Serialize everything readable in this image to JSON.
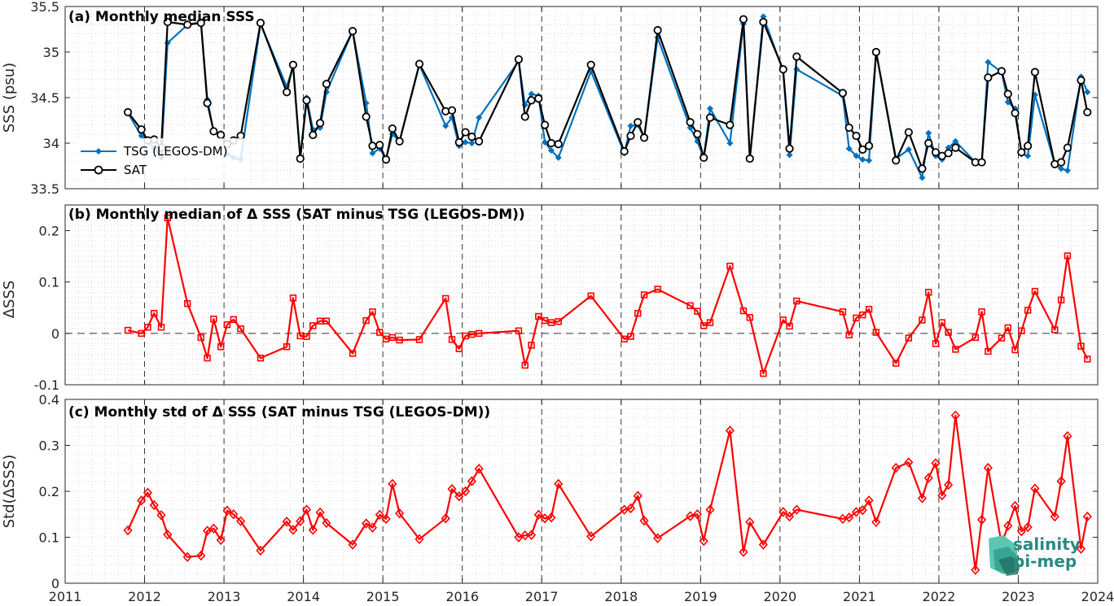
{
  "chart_data": [
    {
      "type": "line",
      "title": "(a) Monthly median SSS",
      "ylabel": "SSS (psu)",
      "ylim": [
        33.5,
        35.5
      ],
      "yticks": [
        "33.5",
        "34",
        "34.5",
        "35",
        "35.5"
      ],
      "xlim": [
        2011,
        2024
      ],
      "grid": "dotted minor grid with dashed year lines",
      "legend_position": "lower-left",
      "series": [
        {
          "name": "TSG (LEGOS-DM)",
          "color": "#0072BD",
          "marker": "filled-diamond",
          "x": [
            2011.79,
            2011.96,
            2012.04,
            2012.12,
            2012.21,
            2012.29,
            2012.54,
            2012.71,
            2012.79,
            2012.87,
            2012.96,
            2013.04,
            2013.12,
            2013.21,
            2013.46,
            2013.79,
            2013.87,
            2013.96,
            2014.04,
            2014.12,
            2014.21,
            2014.29,
            2014.62,
            2014.79,
            2014.87,
            2014.96,
            2015.04,
            2015.12,
            2015.21,
            2015.46,
            2015.79,
            2015.87,
            2015.96,
            2016.04,
            2016.12,
            2016.21,
            2016.71,
            2016.79,
            2016.87,
            2016.96,
            2017.04,
            2017.12,
            2017.21,
            2017.62,
            2018.04,
            2018.12,
            2018.21,
            2018.29,
            2018.46,
            2018.87,
            2018.96,
            2019.04,
            2019.12,
            2019.37,
            2019.54,
            2019.62,
            2019.79,
            2020.04,
            2020.12,
            2020.21,
            2020.79,
            2020.87,
            2020.96,
            2021.04,
            2021.12,
            2021.21,
            2021.46,
            2021.62,
            2021.79,
            2021.87,
            2021.96,
            2022.04,
            2022.12,
            2022.21,
            2022.46,
            2022.54,
            2022.62,
            2022.79,
            2022.87,
            2022.96,
            2023.04,
            2023.12,
            2023.21,
            2023.46,
            2023.54,
            2023.62,
            2023.79,
            2023.87
          ],
          "y": [
            34.33,
            34.08,
            34.02,
            33.95,
            33.84,
            35.1,
            35.3,
            35.33,
            34.48,
            34.12,
            34.11,
            33.88,
            33.84,
            33.82,
            35.31,
            34.62,
            34.84,
            33.84,
            34.5,
            34.15,
            34.17,
            34.56,
            35.23,
            34.44,
            33.89,
            33.94,
            33.83,
            34.1,
            34.02,
            34.86,
            34.19,
            34.28,
            33.97,
            34.01,
            34.0,
            34.28,
            34.9,
            34.42,
            34.54,
            34.52,
            34.01,
            33.92,
            33.84,
            34.79,
            33.89,
            34.19,
            34.2,
            34.06,
            35.16,
            34.17,
            34.02,
            33.84,
            34.38,
            34.0,
            35.31,
            33.82,
            35.39,
            34.79,
            33.87,
            34.81,
            34.52,
            33.94,
            33.86,
            33.82,
            33.81,
            35.0,
            33.83,
            33.93,
            33.62,
            34.11,
            33.86,
            33.82,
            33.95,
            34.02,
            33.79,
            33.78,
            34.89,
            34.78,
            34.45,
            34.38,
            33.88,
            33.86,
            34.53,
            33.77,
            33.72,
            33.7,
            34.73,
            34.56
          ]
        },
        {
          "name": "SAT",
          "color": "#000000",
          "marker": "open-circle",
          "x": [
            2011.79,
            2011.96,
            2012.04,
            2012.12,
            2012.21,
            2012.29,
            2012.54,
            2012.71,
            2012.79,
            2012.87,
            2012.96,
            2013.04,
            2013.12,
            2013.21,
            2013.46,
            2013.79,
            2013.87,
            2013.96,
            2014.04,
            2014.12,
            2014.21,
            2014.29,
            2014.62,
            2014.79,
            2014.87,
            2014.96,
            2015.04,
            2015.12,
            2015.21,
            2015.46,
            2015.79,
            2015.87,
            2015.96,
            2016.04,
            2016.12,
            2016.21,
            2016.71,
            2016.79,
            2016.87,
            2016.96,
            2017.04,
            2017.12,
            2017.21,
            2017.62,
            2018.04,
            2018.12,
            2018.21,
            2018.29,
            2018.46,
            2018.87,
            2018.96,
            2019.04,
            2019.12,
            2019.37,
            2019.54,
            2019.62,
            2019.79,
            2020.04,
            2020.12,
            2020.21,
            2020.79,
            2020.87,
            2020.96,
            2021.04,
            2021.12,
            2021.21,
            2021.46,
            2021.62,
            2021.79,
            2021.87,
            2021.96,
            2022.04,
            2022.12,
            2022.21,
            2022.46,
            2022.54,
            2022.62,
            2022.79,
            2022.87,
            2022.96,
            2023.04,
            2023.12,
            2023.21,
            2023.46,
            2023.54,
            2023.62,
            2023.79,
            2023.87
          ],
          "y": [
            34.34,
            34.15,
            34.03,
            34.04,
            33.95,
            35.33,
            35.3,
            35.32,
            34.44,
            34.13,
            34.09,
            33.99,
            34.03,
            34.08,
            35.32,
            34.56,
            34.86,
            33.83,
            34.47,
            34.09,
            34.22,
            34.65,
            35.23,
            34.29,
            33.97,
            33.98,
            33.82,
            34.16,
            34.02,
            34.87,
            34.35,
            34.36,
            34.01,
            34.12,
            34.07,
            34.02,
            34.92,
            34.29,
            34.47,
            34.49,
            34.2,
            34.0,
            33.99,
            34.86,
            33.91,
            34.08,
            34.23,
            34.06,
            35.24,
            34.23,
            34.1,
            33.84,
            34.28,
            34.2,
            35.36,
            33.83,
            35.33,
            34.81,
            33.94,
            34.95,
            34.55,
            34.17,
            34.08,
            33.93,
            33.97,
            35.0,
            33.81,
            34.12,
            33.72,
            34.0,
            33.9,
            33.86,
            33.89,
            33.95,
            33.79,
            33.79,
            34.72,
            34.79,
            34.54,
            34.33,
            33.9,
            33.97,
            34.78,
            33.77,
            33.79,
            33.95,
            34.69,
            34.34
          ]
        }
      ]
    },
    {
      "type": "line",
      "title": "(b) Monthly median of Δ SSS (SAT minus TSG (LEGOS-DM))",
      "ylabel": "ΔSSS",
      "ylim": [
        -0.1,
        0.25
      ],
      "yticks": [
        "-0.1",
        "0",
        "0.1",
        "0.2"
      ],
      "xlim": [
        2011,
        2024
      ],
      "reference_line": 0,
      "series": [
        {
          "name": "",
          "color": "#FF0000",
          "marker": "open-square",
          "x": [
            2011.79,
            2011.96,
            2012.04,
            2012.12,
            2012.21,
            2012.29,
            2012.54,
            2012.71,
            2012.79,
            2012.87,
            2012.96,
            2013.04,
            2013.12,
            2013.21,
            2013.46,
            2013.79,
            2013.87,
            2013.96,
            2014.04,
            2014.12,
            2014.21,
            2014.29,
            2014.62,
            2014.79,
            2014.87,
            2014.96,
            2015.04,
            2015.12,
            2015.21,
            2015.46,
            2015.79,
            2015.87,
            2015.96,
            2016.04,
            2016.12,
            2016.21,
            2016.71,
            2016.79,
            2016.87,
            2016.96,
            2017.04,
            2017.12,
            2017.21,
            2017.62,
            2018.04,
            2018.12,
            2018.21,
            2018.29,
            2018.46,
            2018.87,
            2018.96,
            2019.04,
            2019.12,
            2019.37,
            2019.54,
            2019.62,
            2019.79,
            2020.04,
            2020.12,
            2020.21,
            2020.79,
            2020.87,
            2020.96,
            2021.04,
            2021.12,
            2021.21,
            2021.46,
            2021.62,
            2021.79,
            2021.87,
            2021.96,
            2022.04,
            2022.12,
            2022.21,
            2022.46,
            2022.54,
            2022.62,
            2022.79,
            2022.87,
            2022.96,
            2023.04,
            2023.12,
            2023.21,
            2023.46,
            2023.54,
            2023.62,
            2023.79,
            2023.87
          ],
          "y": [
            0.006,
            0.0,
            0.012,
            0.039,
            0.012,
            0.225,
            0.058,
            -0.008,
            -0.048,
            0.028,
            -0.026,
            0.017,
            0.027,
            0.009,
            -0.048,
            -0.026,
            0.069,
            -0.005,
            -0.006,
            0.015,
            0.024,
            0.024,
            -0.039,
            0.025,
            0.042,
            0.002,
            -0.011,
            -0.008,
            -0.013,
            -0.012,
            0.068,
            -0.012,
            -0.03,
            -0.005,
            -0.002,
            0.0,
            0.005,
            -0.062,
            -0.023,
            0.033,
            0.025,
            0.021,
            0.023,
            0.073,
            -0.011,
            -0.006,
            0.039,
            0.075,
            0.086,
            0.054,
            0.043,
            0.015,
            0.021,
            0.131,
            0.044,
            0.031,
            -0.078,
            0.026,
            0.014,
            0.063,
            0.042,
            -0.003,
            0.03,
            0.036,
            0.047,
            0.002,
            -0.058,
            -0.009,
            0.026,
            0.08,
            -0.02,
            0.021,
            0.002,
            -0.031,
            -0.008,
            0.042,
            -0.035,
            -0.009,
            0.011,
            -0.032,
            0.005,
            0.045,
            0.082,
            0.007,
            0.065,
            0.151,
            -0.025,
            -0.05
          ]
        }
      ]
    },
    {
      "type": "line",
      "title": "(c) Monthly std of Δ SSS (SAT minus TSG (LEGOS-DM))",
      "ylabel": "Std(ΔSSS)",
      "ylim": [
        0,
        0.4
      ],
      "yticks": [
        "0",
        "0.1",
        "0.2",
        "0.3",
        "0.4"
      ],
      "xlim": [
        2011,
        2024
      ],
      "xticks": [
        "2011",
        "2012",
        "2013",
        "2014",
        "2015",
        "2016",
        "2017",
        "2018",
        "2019",
        "2020",
        "2021",
        "2022",
        "2023",
        "2024"
      ],
      "series": [
        {
          "name": "",
          "color": "#FF0000",
          "marker": "open-diamond",
          "x": [
            2011.79,
            2011.96,
            2012.04,
            2012.12,
            2012.21,
            2012.29,
            2012.54,
            2012.71,
            2012.79,
            2012.87,
            2012.96,
            2013.04,
            2013.12,
            2013.21,
            2013.46,
            2013.79,
            2013.87,
            2013.96,
            2014.04,
            2014.12,
            2014.21,
            2014.29,
            2014.62,
            2014.79,
            2014.87,
            2014.96,
            2015.04,
            2015.12,
            2015.21,
            2015.46,
            2015.79,
            2015.87,
            2015.96,
            2016.04,
            2016.12,
            2016.21,
            2016.71,
            2016.79,
            2016.87,
            2016.96,
            2017.04,
            2017.12,
            2017.21,
            2017.62,
            2018.04,
            2018.12,
            2018.21,
            2018.29,
            2018.46,
            2018.87,
            2018.96,
            2019.04,
            2019.12,
            2019.37,
            2019.54,
            2019.62,
            2019.79,
            2020.04,
            2020.12,
            2020.21,
            2020.79,
            2020.87,
            2020.96,
            2021.04,
            2021.12,
            2021.21,
            2021.46,
            2021.62,
            2021.79,
            2021.87,
            2021.96,
            2022.04,
            2022.12,
            2022.21,
            2022.46,
            2022.54,
            2022.62,
            2022.79,
            2022.87,
            2022.96,
            2023.04,
            2023.12,
            2023.21,
            2023.46,
            2023.54,
            2023.62,
            2023.79,
            2023.87
          ],
          "y": [
            0.115,
            0.18,
            0.197,
            0.17,
            0.148,
            0.106,
            0.057,
            0.06,
            0.114,
            0.119,
            0.094,
            0.158,
            0.15,
            0.135,
            0.071,
            0.134,
            0.116,
            0.135,
            0.16,
            0.116,
            0.154,
            0.131,
            0.084,
            0.13,
            0.121,
            0.149,
            0.14,
            0.216,
            0.152,
            0.096,
            0.141,
            0.205,
            0.189,
            0.2,
            0.222,
            0.249,
            0.1,
            0.104,
            0.105,
            0.149,
            0.141,
            0.143,
            0.216,
            0.102,
            0.16,
            0.163,
            0.19,
            0.136,
            0.098,
            0.146,
            0.15,
            0.092,
            0.16,
            0.332,
            0.068,
            0.133,
            0.084,
            0.155,
            0.145,
            0.16,
            0.14,
            0.143,
            0.155,
            0.159,
            0.18,
            0.133,
            0.251,
            0.263,
            0.185,
            0.229,
            0.261,
            0.191,
            0.214,
            0.365,
            0.029,
            0.138,
            0.251,
            0.085,
            0.125,
            0.168,
            0.113,
            0.122,
            0.206,
            0.145,
            0.222,
            0.32,
            0.075,
            0.145
          ]
        }
      ]
    }
  ],
  "logo": {
    "line1": "salinity",
    "line2": "pi-mep"
  }
}
